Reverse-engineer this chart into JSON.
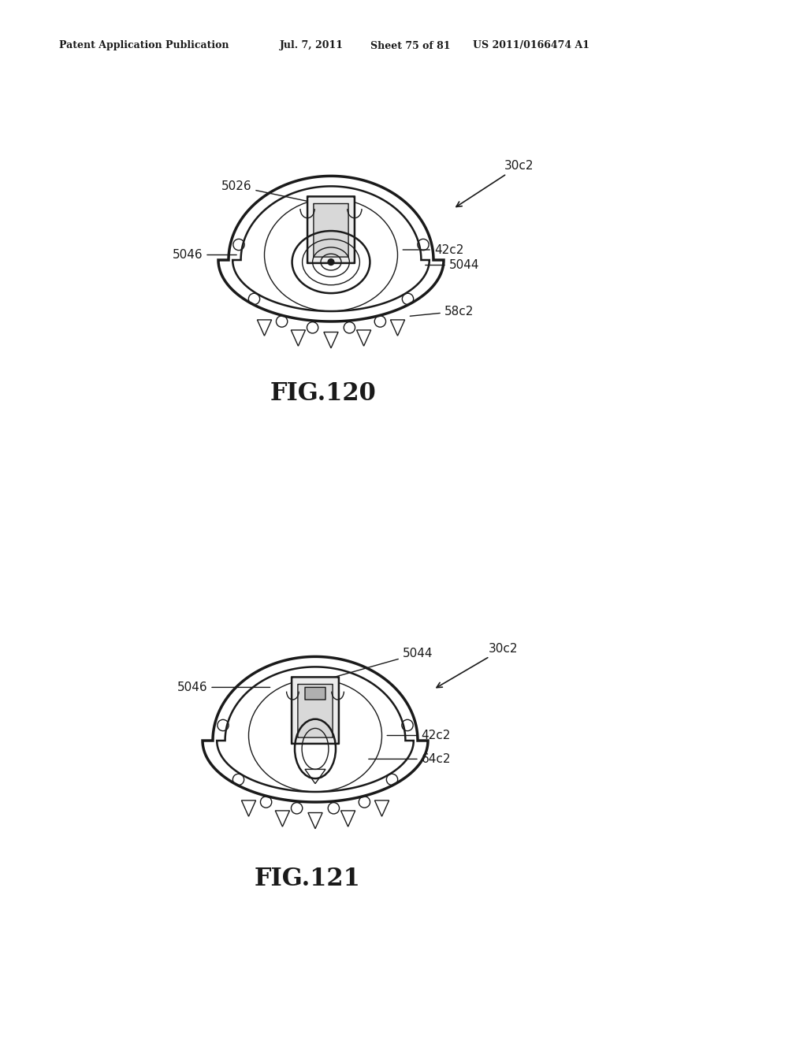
{
  "background_color": "#ffffff",
  "header_text": "Patent Application Publication",
  "header_date": "Jul. 7, 2011",
  "header_sheet": "Sheet 75 of 81",
  "header_patent": "US 2011/0166474 A1",
  "fig1_label": "FIG.120",
  "fig2_label": "FIG.121"
}
